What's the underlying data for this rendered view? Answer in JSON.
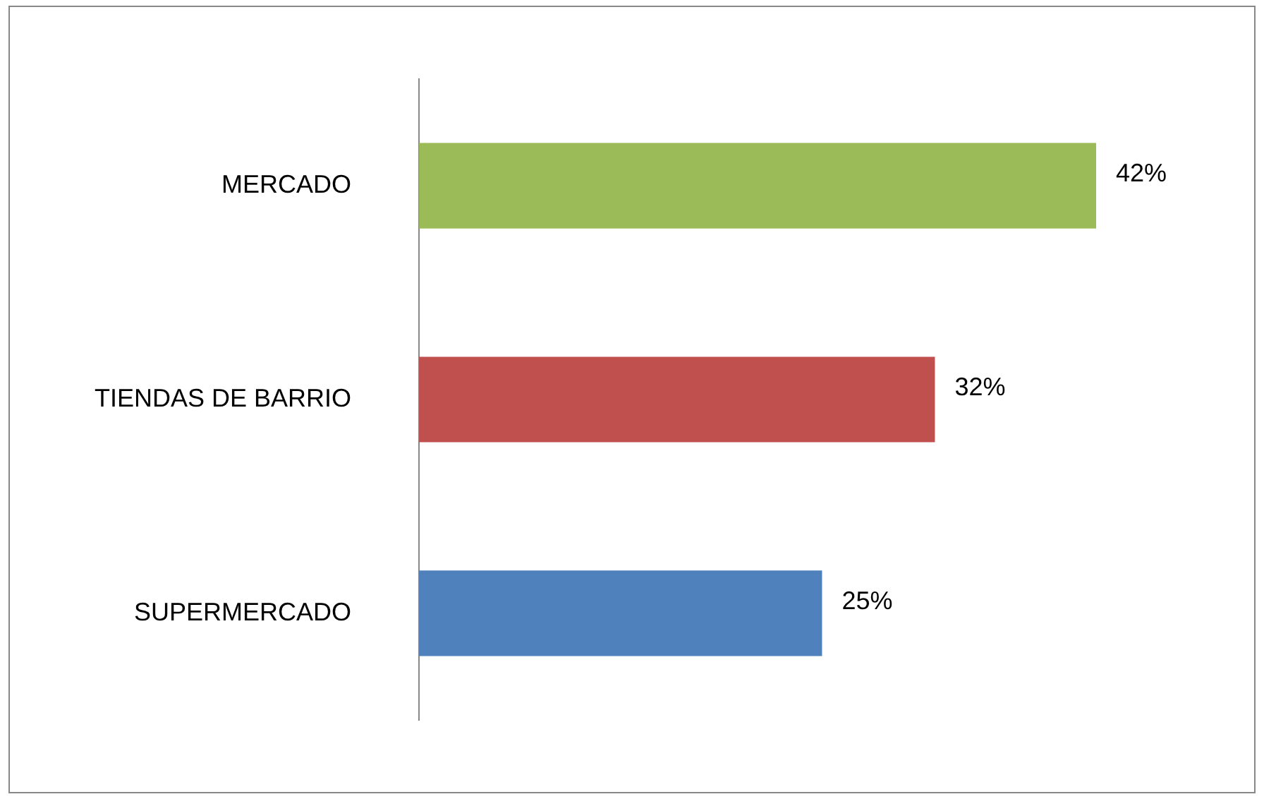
{
  "chart_data": {
    "type": "bar",
    "orientation": "horizontal",
    "categories": [
      "MERCADO",
      "TIENDAS DE BARRIO",
      "SUPERMERCADO"
    ],
    "values": [
      42,
      32,
      25
    ],
    "colors": [
      "#9bbb59",
      "#c0504d",
      "#4f81bd"
    ],
    "value_labels": [
      "42%",
      "32%",
      "25%"
    ],
    "legend": false
  }
}
